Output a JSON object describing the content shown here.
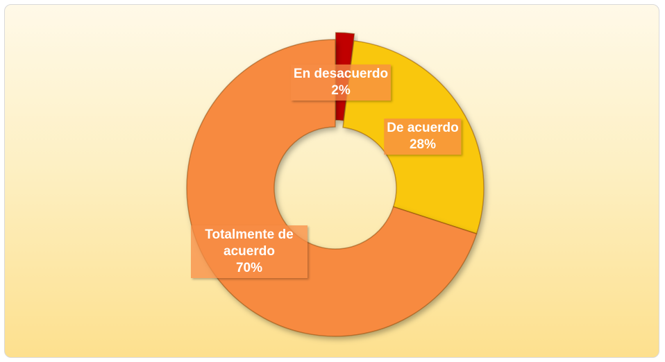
{
  "chart_data": {
    "type": "donut",
    "categories": [
      "En desacuerdo",
      "De acuerdo",
      "Totalmente de acuerdo"
    ],
    "values": [
      2,
      28,
      70
    ],
    "value_labels": [
      "2%",
      "28%",
      "70%"
    ],
    "colors": [
      "#c00000",
      "#f9c70a",
      "#f78a3f"
    ],
    "exploded": [
      true,
      false,
      false
    ]
  }
}
